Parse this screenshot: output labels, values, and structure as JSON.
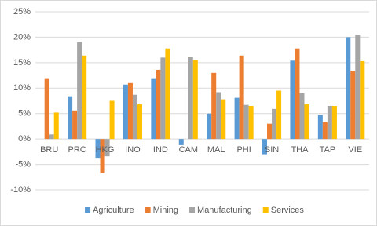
{
  "chart_data": {
    "type": "bar",
    "categories": [
      "BRU",
      "PRC",
      "HKG",
      "INO",
      "IND",
      "CAM",
      "MAL",
      "PHI",
      "SIN",
      "THA",
      "TAP",
      "VIE"
    ],
    "series": [
      {
        "name": "Agriculture",
        "color": "#5b9bd5",
        "values": [
          null,
          8.4,
          -3.7,
          10.7,
          11.8,
          -1.2,
          5.0,
          8.1,
          -3.0,
          15.4,
          4.7,
          20.0
        ]
      },
      {
        "name": "Mining",
        "color": "#ed7d31",
        "values": [
          11.8,
          5.6,
          -6.7,
          11.0,
          13.6,
          null,
          13.0,
          16.4,
          3.0,
          17.8,
          3.3,
          13.4
        ]
      },
      {
        "name": "Manufacturing",
        "color": "#a5a5a5",
        "values": [
          0.9,
          19.0,
          -3.4,
          8.7,
          16.0,
          16.2,
          9.2,
          6.7,
          5.9,
          9.0,
          6.5,
          20.5
        ]
      },
      {
        "name": "Services",
        "color": "#ffc000",
        "values": [
          5.2,
          16.4,
          7.5,
          6.8,
          17.8,
          15.5,
          7.8,
          6.5,
          9.5,
          6.8,
          6.5,
          15.3
        ]
      }
    ],
    "ylim": [
      -10,
      25
    ],
    "yticks": [
      {
        "value": -10,
        "label": "-10%"
      },
      {
        "value": -5,
        "label": "-5%"
      },
      {
        "value": 0,
        "label": "0%"
      },
      {
        "value": 5,
        "label": "5%"
      },
      {
        "value": 10,
        "label": "10%"
      },
      {
        "value": 15,
        "label": "15%"
      },
      {
        "value": 20,
        "label": "20%"
      },
      {
        "value": 25,
        "label": "25%"
      }
    ],
    "grid": true,
    "legend": "bottom"
  }
}
